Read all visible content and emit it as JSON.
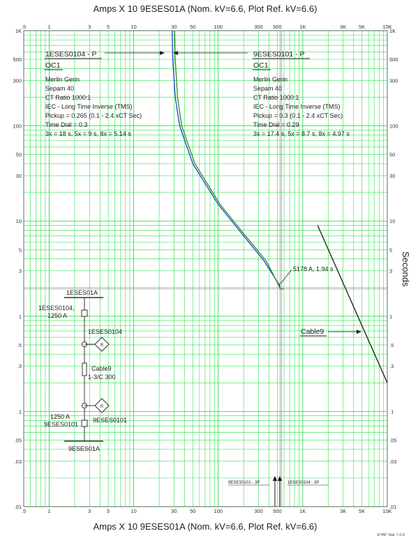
{
  "header": {
    "title": "Amps  X  10   9ESES01A (Nom. kV=6.6, Plot Ref. kV=6.6)"
  },
  "footer": {
    "title": "Amps  X  10   9ESES01A (Nom. kV=6.6, Plot Ref. kV=6.6)",
    "product": "ETAP Star 7.0.0"
  },
  "chart_data": {
    "type": "line",
    "x_scale": "log",
    "y_scale": "log",
    "xlim": [
      0.5,
      10000
    ],
    "ylim": [
      0.01,
      1000
    ],
    "xlabel": "Amps  X  10   9ESES01A (Nom. kV=6.6, Plot Ref. kV=6.6)",
    "ylabel": "Seconds",
    "grid": true,
    "x_ticks": [
      {
        "v": 0.5,
        "t": ".5"
      },
      {
        "v": 1,
        "t": "1"
      },
      {
        "v": 3,
        "t": "3"
      },
      {
        "v": 5,
        "t": "5"
      },
      {
        "v": 10,
        "t": "10"
      },
      {
        "v": 30,
        "t": "30"
      },
      {
        "v": 50,
        "t": "50"
      },
      {
        "v": 100,
        "t": "100"
      },
      {
        "v": 300,
        "t": "300"
      },
      {
        "v": 500,
        "t": "500"
      },
      {
        "v": 1000,
        "t": "1K"
      },
      {
        "v": 3000,
        "t": "3K"
      },
      {
        "v": 5000,
        "t": "5K"
      },
      {
        "v": 10000,
        "t": "10K"
      }
    ],
    "y_ticks": [
      {
        "v": 1000,
        "t": "1K"
      },
      {
        "v": 500,
        "t": "500"
      },
      {
        "v": 300,
        "t": "300"
      },
      {
        "v": 100,
        "t": "100"
      },
      {
        "v": 50,
        "t": "50"
      },
      {
        "v": 30,
        "t": "30"
      },
      {
        "v": 10,
        "t": "10"
      },
      {
        "v": 5,
        "t": "5"
      },
      {
        "v": 3,
        "t": "3"
      },
      {
        "v": 1,
        "t": "1"
      },
      {
        "v": 0.5,
        "t": ".5"
      },
      {
        "v": 0.3,
        "t": ".3"
      },
      {
        "v": 0.1,
        "t": ".1"
      },
      {
        "v": 0.05,
        "t": ".05"
      },
      {
        "v": 0.03,
        "t": ".03"
      },
      {
        "v": 0.01,
        "t": ".01"
      }
    ],
    "series": [
      {
        "name": "1ESES0104 - P",
        "color": "#1f3fbf",
        "points": [
          [
            28.5,
            1000
          ],
          [
            29,
            500
          ],
          [
            31,
            200
          ],
          [
            35,
            100
          ],
          [
            50,
            40
          ],
          [
            100,
            15
          ],
          [
            200,
            7
          ],
          [
            350,
            3.8
          ],
          [
            500,
            2.3
          ],
          [
            530,
            2.15
          ],
          [
            540,
            1.94
          ],
          [
            600,
            1.94
          ]
        ]
      },
      {
        "name": "9ESES0101 - P",
        "color": "#2a8a2a",
        "points": [
          [
            30.5,
            1000
          ],
          [
            31,
            500
          ],
          [
            33,
            200
          ],
          [
            37,
            100
          ],
          [
            53,
            40
          ],
          [
            105,
            15
          ],
          [
            210,
            7
          ],
          [
            370,
            3.8
          ],
          [
            515,
            2.15
          ],
          [
            540,
            1.94
          ],
          [
            600,
            1.94
          ]
        ]
      },
      {
        "name": "Cable9",
        "color": "#1a1a1a",
        "points": [
          [
            1500,
            9
          ],
          [
            10000,
            0.2
          ]
        ]
      }
    ],
    "vertical_markers": [
      {
        "x": 540,
        "color": "#999999"
      },
      {
        "x": 560,
        "color": "#999999"
      }
    ],
    "annotations": {
      "relay1": {
        "title": "1ESES0104 - P",
        "subtitle": "OC1",
        "lines": [
          "Merlin Gerin",
          "Sepam 40",
          "CT Ratio 1000:1",
          "IEC - Long Time Inverse (TMS)",
          "Pickup = 0.265 (0.1 - 2.4  xCT Sec)",
          "Time Dial = 0.3",
          "3x = 18 s, 5x = 9 s, 8x = 5.14 s"
        ]
      },
      "relay2": {
        "title": "9ESES0101 - P",
        "subtitle": "OC1",
        "lines": [
          "Merlin Gerin",
          "Sepam 40",
          "CT Ratio 1000:1",
          "IEC - Long Time Inverse (TMS)",
          "Pickup = 0.3 (0.1 - 2.4  xCT Sec)",
          "Time Dial = 0.29",
          "3x = 17.4 s, 5x = 8.7 s, 8x = 4.97 s"
        ]
      },
      "operating_point": "5178 A, 1.94 s",
      "cable_label": "Cable9",
      "fault_left": "9ESES0101 - 3P",
      "fault_right": "1ESES0104 - 3P"
    },
    "oneline": {
      "bus_top": "1ESES01A",
      "breaker_top": "1ESES0104,",
      "breaker_top_rating": "1250 A",
      "relay_top": "1ESES0104",
      "relay_symbol": "R",
      "cable_name": "Cable9",
      "cable_size": "1-3/C 300",
      "breaker_bot_rating": "1250 A",
      "breaker_bot": "9ESES0101",
      "relay_bot": "9ESES0101",
      "bus_bot": "9ESES01A"
    }
  }
}
